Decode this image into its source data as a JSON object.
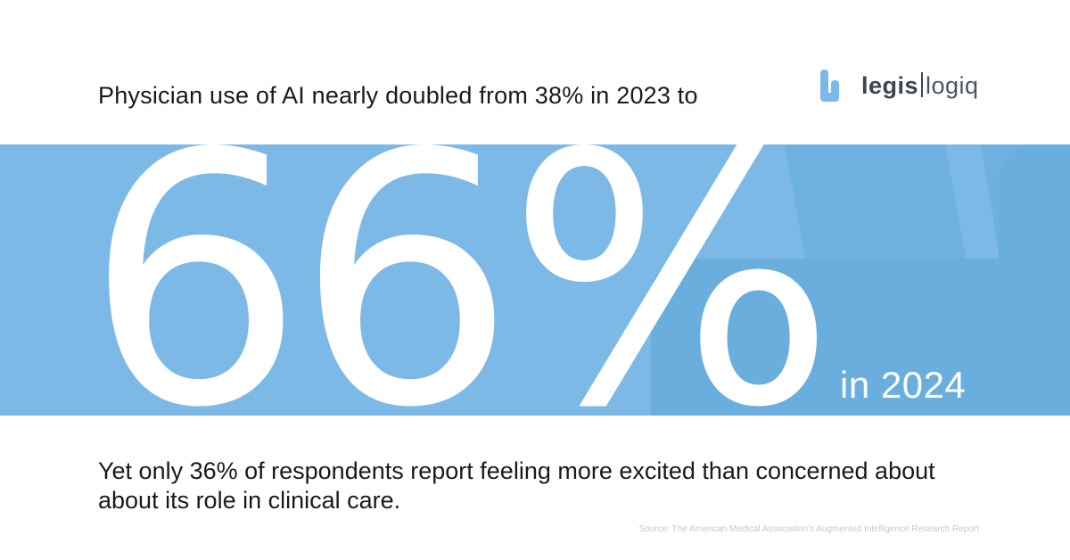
{
  "headline": "Physician use of AI nearly doubled from 38% in 2023 to",
  "logo": {
    "icon": "legislogiq-logo-icon",
    "bold": "legis",
    "light": "logiq"
  },
  "stat": {
    "value": "66%",
    "year_label": "in 2024"
  },
  "subtext": "Yet only 36% of respondents report feeling more excited than concerned about about its role in clinical care.",
  "source": "Source: The American Medical Association's Augmented Intelligence Research Report",
  "colors": {
    "band": "#7db9e6",
    "band_deco": "#6aaede",
    "logo_mark": "#7db9e6",
    "text": "#1a1a1a"
  }
}
